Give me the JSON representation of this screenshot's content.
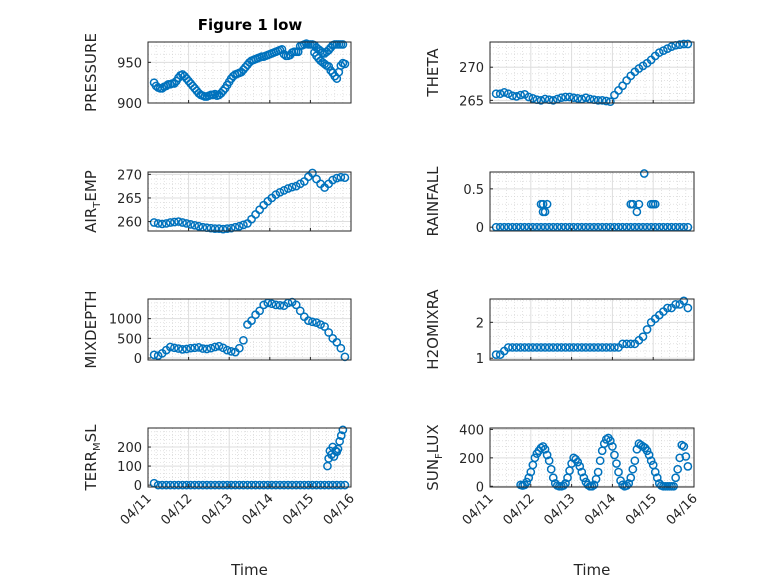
{
  "title": "Figure 1 low",
  "x_label": "Time",
  "x_ticks": [
    "04/11",
    "04/12",
    "04/13",
    "04/14",
    "04/15",
    "04/16"
  ],
  "marker_color": "#0072BD",
  "chart_data": [
    {
      "type": "scatter",
      "id": "pressure",
      "ylabel": "PRESSURE",
      "ylim": [
        900,
        975
      ],
      "yticks": [
        900,
        950
      ],
      "xlim": [
        0,
        5
      ],
      "grid": true,
      "x": [
        0.15,
        0.2,
        0.25,
        0.3,
        0.35,
        0.4,
        0.45,
        0.5,
        0.55,
        0.6,
        0.65,
        0.7,
        0.75,
        0.8,
        0.85,
        0.9,
        0.95,
        1.0,
        1.05,
        1.1,
        1.15,
        1.2,
        1.25,
        1.3,
        1.35,
        1.4,
        1.45,
        1.5,
        1.55,
        1.6,
        1.65,
        1.7,
        1.75,
        1.8,
        1.85,
        1.9,
        1.95,
        2.0,
        2.05,
        2.1,
        2.15,
        2.2,
        2.25,
        2.3,
        2.35,
        2.4,
        2.45,
        2.5,
        2.55,
        2.6,
        2.65,
        2.7,
        2.75,
        2.8,
        2.85,
        2.9,
        2.95,
        3.0,
        3.05,
        3.1,
        3.15,
        3.2,
        3.25,
        3.3,
        3.35,
        3.4,
        3.45,
        3.5,
        3.55,
        3.6,
        3.65,
        3.7,
        3.75,
        3.8,
        3.85,
        3.9,
        3.95,
        4.0,
        4.05,
        4.1,
        4.15,
        4.2,
        4.25,
        4.3,
        4.35,
        4.4,
        4.45,
        4.5,
        4.55,
        4.6,
        4.65,
        4.7,
        4.75,
        4.8
      ],
      "y": [
        925,
        921,
        919,
        918,
        918,
        920,
        921,
        923,
        923,
        924,
        924,
        927,
        931,
        934,
        935,
        933,
        930,
        927,
        924,
        921,
        918,
        915,
        912,
        910,
        909,
        908,
        908,
        909,
        910,
        910,
        911,
        909,
        910,
        912,
        915,
        918,
        922,
        926,
        930,
        933,
        935,
        936,
        937,
        938,
        941,
        944,
        947,
        950,
        952,
        953,
        954,
        955,
        956,
        957,
        957,
        958,
        959,
        960,
        961,
        962,
        963,
        964,
        965,
        966,
        960,
        958,
        958,
        959,
        962,
        963,
        963,
        963,
        970,
        971,
        972,
        973,
        972,
        972,
        972,
        971,
        968,
        966,
        964,
        962,
        961,
        963,
        965,
        968,
        971,
        972,
        972,
        972,
        972,
        972
      ],
      "extra_x": [
        4.1,
        4.15,
        4.2,
        4.25,
        4.3,
        4.35,
        4.4,
        4.45,
        4.5,
        4.55,
        4.6,
        4.65,
        4.7,
        4.75,
        4.8,
        4.85
      ],
      "extra_y": [
        962,
        958,
        955,
        952,
        950,
        948,
        946,
        945,
        940,
        937,
        933,
        930,
        938,
        946,
        949,
        948
      ]
    },
    {
      "type": "scatter",
      "id": "theta",
      "ylabel": "THETA",
      "ylim": [
        264.6,
        273.8
      ],
      "yticks": [
        265,
        270
      ],
      "xlim": [
        0,
        5
      ],
      "grid": true,
      "x": [
        0.15,
        0.25,
        0.35,
        0.45,
        0.55,
        0.65,
        0.75,
        0.85,
        0.95,
        1.05,
        1.15,
        1.25,
        1.35,
        1.45,
        1.55,
        1.65,
        1.75,
        1.85,
        1.95,
        2.05,
        2.15,
        2.25,
        2.35,
        2.45,
        2.55,
        2.65,
        2.75,
        2.85,
        2.95,
        3.05,
        3.15,
        3.25,
        3.35,
        3.45,
        3.55,
        3.65,
        3.75,
        3.85,
        3.95,
        4.05,
        4.15,
        4.25,
        4.35,
        4.45,
        4.55,
        4.65,
        4.75,
        4.85
      ],
      "y": [
        266,
        266,
        266.2,
        266,
        265.7,
        265.6,
        265.8,
        265.9,
        265.5,
        265.3,
        265.1,
        265,
        265.2,
        265.1,
        265,
        265.2,
        265.4,
        265.5,
        265.5,
        265.4,
        265.3,
        265.2,
        265.4,
        265.2,
        265.1,
        265,
        265,
        264.9,
        264.8,
        265.8,
        266.5,
        267.2,
        268,
        268.7,
        269.3,
        269.8,
        270.2,
        270.6,
        271.1,
        271.7,
        272.2,
        272.5,
        272.8,
        273.1,
        273.3,
        273.4,
        273.5,
        273.5
      ]
    },
    {
      "type": "scatter",
      "id": "airtemp",
      "ylabel": "AIR_TEMP",
      "ylim": [
        258,
        270.5
      ],
      "yticks": [
        260,
        265,
        270
      ],
      "xlim": [
        0,
        5
      ],
      "grid": true,
      "x": [
        0.15,
        0.25,
        0.35,
        0.45,
        0.55,
        0.65,
        0.75,
        0.85,
        0.95,
        1.05,
        1.15,
        1.25,
        1.35,
        1.45,
        1.55,
        1.65,
        1.75,
        1.85,
        1.95,
        2.05,
        2.15,
        2.25,
        2.35,
        2.45,
        2.55,
        2.65,
        2.75,
        2.85,
        2.95,
        3.05,
        3.15,
        3.25,
        3.35,
        3.45,
        3.55,
        3.65,
        3.75,
        3.85,
        3.95,
        4.05,
        4.15,
        4.25,
        4.35,
        4.45,
        4.55,
        4.65,
        4.75,
        4.85
      ],
      "y": [
        259.8,
        259.6,
        259.5,
        259.6,
        259.8,
        259.9,
        260,
        259.8,
        259.6,
        259.4,
        259.2,
        259,
        258.8,
        258.7,
        258.6,
        258.5,
        258.5,
        258.4,
        258.5,
        258.6,
        258.8,
        259,
        259.3,
        259.6,
        260.5,
        261.5,
        262.5,
        263.5,
        264.3,
        265,
        265.7,
        266.2,
        266.6,
        267,
        267.3,
        267.5,
        268,
        268.5,
        269.5,
        270.3,
        269,
        268,
        267.2,
        268,
        268.8,
        269.2,
        269.4,
        269.3
      ]
    },
    {
      "type": "scatter",
      "id": "rainfall",
      "ylabel": "RAINFALL",
      "ylim": [
        -0.05,
        0.72
      ],
      "yticks": [
        0,
        0.5
      ],
      "xlim": [
        0,
        5
      ],
      "grid": true,
      "x": [
        0.15,
        0.25,
        0.35,
        0.45,
        0.55,
        0.65,
        0.75,
        0.85,
        0.95,
        1.05,
        1.15,
        1.25,
        1.35,
        1.45,
        1.55,
        1.65,
        1.75,
        1.85,
        1.95,
        2.05,
        2.15,
        2.25,
        2.35,
        2.45,
        2.55,
        2.65,
        2.75,
        2.85,
        2.95,
        3.05,
        3.15,
        3.25,
        3.35,
        3.45,
        3.55,
        3.65,
        3.75,
        3.85,
        3.95,
        4.05,
        4.15,
        4.25,
        4.35,
        4.45,
        4.55,
        4.65,
        4.75,
        4.85,
        1.25,
        1.3,
        1.35,
        1.4,
        1.3,
        3.45,
        3.5,
        3.6,
        3.65,
        3.78,
        3.95,
        4.0,
        4.05
      ],
      "y": [
        0,
        0,
        0,
        0,
        0,
        0,
        0,
        0,
        0,
        0,
        0,
        0,
        0,
        0,
        0,
        0,
        0,
        0,
        0,
        0,
        0,
        0,
        0,
        0,
        0,
        0,
        0,
        0,
        0,
        0,
        0,
        0,
        0,
        0,
        0,
        0,
        0,
        0,
        0,
        0,
        0,
        0,
        0,
        0,
        0,
        0,
        0,
        0,
        0.3,
        0.3,
        0.2,
        0.3,
        0.2,
        0.3,
        0.3,
        0.2,
        0.3,
        0.7,
        0.3,
        0.3,
        0.3
      ]
    },
    {
      "type": "scatter",
      "id": "mixdepth",
      "ylabel": "MIXDEPTH",
      "ylim": [
        -50,
        1500
      ],
      "yticks": [
        0,
        500,
        1000
      ],
      "xlim": [
        0,
        5
      ],
      "grid": true,
      "x": [
        0.15,
        0.25,
        0.35,
        0.45,
        0.55,
        0.65,
        0.75,
        0.85,
        0.95,
        1.05,
        1.15,
        1.25,
        1.35,
        1.45,
        1.55,
        1.65,
        1.75,
        1.85,
        1.95,
        2.05,
        2.15,
        2.25,
        2.35,
        2.45,
        2.55,
        2.65,
        2.75,
        2.85,
        2.95,
        3.05,
        3.15,
        3.25,
        3.35,
        3.45,
        3.55,
        3.65,
        3.75,
        3.85,
        3.95,
        4.05,
        4.15,
        4.25,
        4.35,
        4.45,
        4.55,
        4.65,
        4.75,
        4.85
      ],
      "y": [
        80,
        60,
        120,
        200,
        280,
        260,
        240,
        220,
        230,
        250,
        260,
        270,
        240,
        230,
        250,
        280,
        300,
        260,
        200,
        170,
        150,
        250,
        450,
        850,
        950,
        1100,
        1200,
        1350,
        1400,
        1380,
        1350,
        1340,
        1330,
        1400,
        1420,
        1350,
        1200,
        1050,
        950,
        920,
        900,
        850,
        800,
        650,
        500,
        400,
        250,
        30
      ]
    },
    {
      "type": "scatter",
      "id": "h2omixra",
      "ylabel": "H2OMIXRA",
      "ylim": [
        0.95,
        2.65
      ],
      "yticks": [
        1,
        2
      ],
      "xlim": [
        0,
        5
      ],
      "grid": true,
      "x": [
        0.15,
        0.25,
        0.35,
        0.45,
        0.55,
        0.65,
        0.75,
        0.85,
        0.95,
        1.05,
        1.15,
        1.25,
        1.35,
        1.45,
        1.55,
        1.65,
        1.75,
        1.85,
        1.95,
        2.05,
        2.15,
        2.25,
        2.35,
        2.45,
        2.55,
        2.65,
        2.75,
        2.85,
        2.95,
        3.05,
        3.15,
        3.25,
        3.35,
        3.45,
        3.55,
        3.65,
        3.75,
        3.85,
        3.95,
        4.05,
        4.15,
        4.25,
        4.35,
        4.45,
        4.55,
        4.65,
        4.75,
        4.85
      ],
      "y": [
        1.1,
        1.1,
        1.2,
        1.3,
        1.3,
        1.3,
        1.3,
        1.3,
        1.3,
        1.3,
        1.3,
        1.3,
        1.3,
        1.3,
        1.3,
        1.3,
        1.3,
        1.3,
        1.3,
        1.3,
        1.3,
        1.3,
        1.3,
        1.3,
        1.3,
        1.3,
        1.3,
        1.3,
        1.3,
        1.3,
        1.3,
        1.4,
        1.4,
        1.4,
        1.4,
        1.5,
        1.6,
        1.8,
        2.0,
        2.1,
        2.2,
        2.3,
        2.4,
        2.4,
        2.5,
        2.5,
        2.6,
        2.4
      ]
    },
    {
      "type": "scatter",
      "id": "terr_msl",
      "ylabel": "TERR_MSL",
      "ylim": [
        -10,
        300
      ],
      "yticks": [
        0,
        100,
        200
      ],
      "xlim": [
        0,
        5
      ],
      "grid": true,
      "x": [
        0.15,
        0.25,
        0.35,
        0.45,
        0.55,
        0.65,
        0.75,
        0.85,
        0.95,
        1.05,
        1.15,
        1.25,
        1.35,
        1.45,
        1.55,
        1.65,
        1.75,
        1.85,
        1.95,
        2.05,
        2.15,
        2.25,
        2.35,
        2.45,
        2.55,
        2.65,
        2.75,
        2.85,
        2.95,
        3.05,
        3.15,
        3.25,
        3.35,
        3.45,
        3.55,
        3.65,
        3.75,
        3.85,
        3.95,
        4.05,
        4.15,
        4.25,
        4.35,
        4.45,
        4.55,
        4.65,
        4.75,
        4.85
      ],
      "y": [
        10,
        0,
        0,
        0,
        0,
        0,
        0,
        0,
        0,
        0,
        0,
        0,
        0,
        0,
        0,
        0,
        0,
        0,
        0,
        0,
        0,
        0,
        0,
        0,
        0,
        0,
        0,
        0,
        0,
        0,
        0,
        0,
        0,
        0,
        0,
        0,
        0,
        0,
        0,
        0,
        0,
        0,
        0,
        0,
        0,
        0,
        0,
        0
      ],
      "extra_x": [
        4.42,
        4.45,
        4.48,
        4.52,
        4.55,
        4.58,
        4.62,
        4.65,
        4.68,
        4.72,
        4.76,
        4.8
      ],
      "extra_y": [
        100,
        140,
        180,
        160,
        200,
        150,
        180,
        175,
        190,
        230,
        260,
        290
      ]
    },
    {
      "type": "scatter",
      "id": "sunflux",
      "ylabel": "SUN_FLUX",
      "ylim": [
        -5,
        410
      ],
      "yticks": [
        0,
        200,
        400
      ],
      "xlim": [
        0,
        5
      ],
      "grid": true,
      "x": [
        0.75,
        0.8,
        0.85,
        0.9,
        0.95,
        1.0,
        1.05,
        1.1,
        1.15,
        1.2,
        1.25,
        1.3,
        1.35,
        1.4,
        1.45,
        1.5,
        1.55,
        1.6,
        1.65,
        1.7,
        1.75,
        1.8,
        1.85,
        1.9,
        1.95,
        2.0,
        2.05,
        2.1,
        2.15,
        2.2,
        2.25,
        2.3,
        2.35,
        2.4,
        2.45,
        2.5,
        2.55,
        2.6,
        2.65,
        2.7,
        2.75,
        2.8,
        2.85,
        2.9,
        2.95,
        3.0,
        3.05,
        3.1,
        3.15,
        3.2,
        3.25,
        3.3,
        3.35,
        3.4,
        3.45,
        3.5,
        3.55,
        3.6,
        3.65,
        3.7,
        3.75,
        3.8,
        3.85,
        3.9,
        3.95,
        4.0,
        4.05,
        4.1,
        4.15,
        4.2,
        4.25,
        4.3,
        4.35,
        4.4,
        4.45,
        4.5,
        4.55,
        4.6,
        4.65,
        4.7,
        4.75,
        4.8,
        4.85
      ],
      "y": [
        10,
        5,
        10,
        30,
        60,
        100,
        150,
        200,
        230,
        250,
        270,
        280,
        260,
        220,
        180,
        120,
        60,
        20,
        5,
        0,
        0,
        5,
        20,
        60,
        110,
        160,
        200,
        190,
        170,
        140,
        100,
        60,
        30,
        10,
        0,
        0,
        10,
        50,
        100,
        180,
        250,
        300,
        330,
        340,
        320,
        280,
        220,
        160,
        100,
        40,
        10,
        0,
        5,
        20,
        60,
        120,
        180,
        260,
        300,
        290,
        280,
        270,
        250,
        220,
        180,
        150,
        100,
        60,
        20,
        5,
        0,
        0,
        0,
        0,
        0,
        0,
        60,
        120,
        200,
        290,
        280,
        210,
        140
      ]
    }
  ]
}
